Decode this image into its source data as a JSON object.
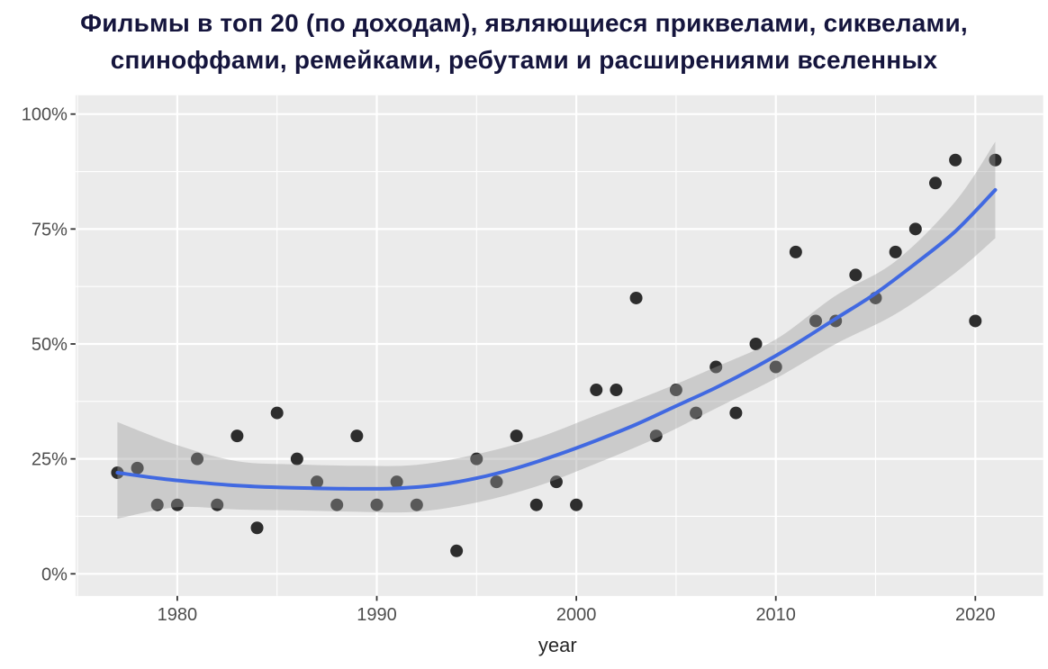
{
  "title": {
    "line1": "Фильмы в топ 20 (по доходам), являющиеся приквелами, сиквелами,",
    "line2": "спиноффами, ремейками, ребутами и расширениями вселенных",
    "color": "#15153d"
  },
  "chart_data": {
    "type": "scatter",
    "title": "Фильмы в топ 20 (по доходам), являющиеся приквелами, сиквелами, спиноффами, ремейками, ребутами и расширениями вселенных",
    "xlabel": "year",
    "ylabel": "",
    "x_ticks": [
      1980,
      1990,
      2000,
      2010,
      2020
    ],
    "x_minor_ticks": [
      1975,
      1985,
      1995,
      2005,
      2015
    ],
    "y_ticks": [
      0,
      25,
      50,
      75,
      100
    ],
    "y_minor_ticks": [
      12.5,
      37.5,
      62.5,
      87.5
    ],
    "y_tick_suffix": "%",
    "xlim": [
      1974.9,
      2023.4
    ],
    "ylim": [
      -4.8,
      104.1
    ],
    "grid": "white major+minor gridlines on grey panel",
    "legend": "none",
    "points": [
      [
        1977,
        22
      ],
      [
        1978,
        23
      ],
      [
        1979,
        15
      ],
      [
        1980,
        15
      ],
      [
        1981,
        25
      ],
      [
        1982,
        15
      ],
      [
        1983,
        30
      ],
      [
        1984,
        10
      ],
      [
        1985,
        35
      ],
      [
        1986,
        25
      ],
      [
        1987,
        20
      ],
      [
        1988,
        15
      ],
      [
        1989,
        30
      ],
      [
        1990,
        15
      ],
      [
        1991,
        20
      ],
      [
        1992,
        15
      ],
      [
        1994,
        5
      ],
      [
        1995,
        25
      ],
      [
        1996,
        20
      ],
      [
        1997,
        30
      ],
      [
        1998,
        15
      ],
      [
        1999,
        20
      ],
      [
        2000,
        15
      ],
      [
        2001,
        40
      ],
      [
        2002,
        40
      ],
      [
        2003,
        60
      ],
      [
        2004,
        30
      ],
      [
        2005,
        40
      ],
      [
        2006,
        35
      ],
      [
        2007,
        45
      ],
      [
        2008,
        35
      ],
      [
        2009,
        50
      ],
      [
        2010,
        45
      ],
      [
        2011,
        70
      ],
      [
        2012,
        55
      ],
      [
        2013,
        55
      ],
      [
        2014,
        65
      ],
      [
        2015,
        60
      ],
      [
        2016,
        70
      ],
      [
        2017,
        75
      ],
      [
        2018,
        85
      ],
      [
        2019,
        90
      ],
      [
        2020,
        55
      ],
      [
        2021,
        90
      ]
    ],
    "smooth_line": [
      [
        1977,
        22
      ],
      [
        1979,
        20.8
      ],
      [
        1981,
        19.9
      ],
      [
        1983,
        19.2
      ],
      [
        1985,
        18.8
      ],
      [
        1987,
        18.6
      ],
      [
        1989,
        18.5
      ],
      [
        1991,
        18.6
      ],
      [
        1993,
        19.3
      ],
      [
        1995,
        20.8
      ],
      [
        1997,
        23
      ],
      [
        1999,
        25.8
      ],
      [
        2001,
        29
      ],
      [
        2003,
        32.5
      ],
      [
        2005,
        36.5
      ],
      [
        2007,
        40.5
      ],
      [
        2009,
        45
      ],
      [
        2011,
        50
      ],
      [
        2013,
        55.5
      ],
      [
        2015,
        61
      ],
      [
        2017,
        67.5
      ],
      [
        2019,
        74.5
      ],
      [
        2021,
        83.5
      ]
    ],
    "confidence_band": [
      [
        1977,
        12,
        33
      ],
      [
        1980,
        14.5,
        28
      ],
      [
        1983,
        14,
        24.5
      ],
      [
        1986,
        13.8,
        23.8
      ],
      [
        1989,
        13.5,
        23.5
      ],
      [
        1992,
        13.5,
        23.7
      ],
      [
        1995,
        15.5,
        26
      ],
      [
        1998,
        19,
        29.5
      ],
      [
        2001,
        24,
        34.5
      ],
      [
        2004,
        29.5,
        39.5
      ],
      [
        2007,
        36,
        45
      ],
      [
        2010,
        42.5,
        51
      ],
      [
        2013,
        50,
        60.5
      ],
      [
        2016,
        56.5,
        68
      ],
      [
        2019,
        65.5,
        81
      ],
      [
        2021,
        73,
        94
      ]
    ],
    "colors": {
      "panel": "#ebebeb",
      "grid": "#ffffff",
      "point": "#1c1c1c",
      "line": "#4169e1",
      "band": "#9a9a9a",
      "tick_label": "#4d4d4d",
      "tick_mark": "#333333",
      "axis_title": "#262626"
    }
  }
}
